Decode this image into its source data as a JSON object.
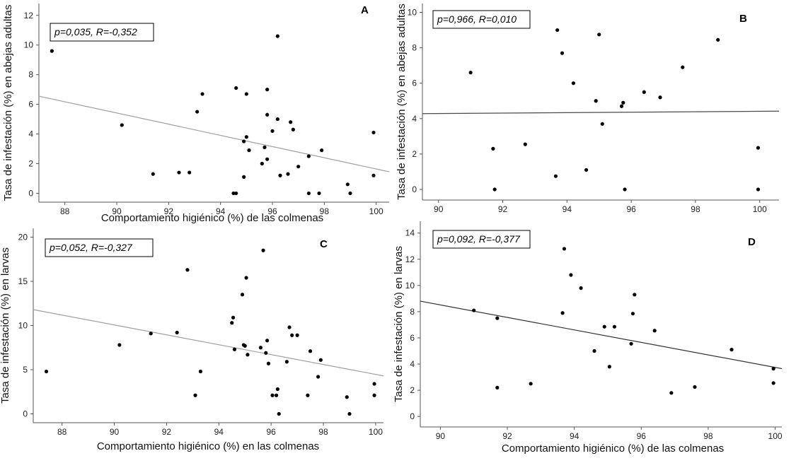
{
  "chart_data": [
    {
      "type": "scatter",
      "panel": "A",
      "xlabel": "Comportamiento higiénico (%) de las colmenas",
      "ylabel": "Tasa de infestación (%) en abejas adultas",
      "annotation": "p=0,035, R=-0,352",
      "xlim": [
        87,
        100.5
      ],
      "ylim": [
        -0.6,
        12.8
      ],
      "xticks": [
        88,
        90,
        92,
        94,
        96,
        98,
        100
      ],
      "yticks": [
        0,
        2,
        4,
        6,
        8,
        10,
        12
      ],
      "fit_line": {
        "x1": 87,
        "y1": 6.55,
        "x2": 100.5,
        "y2": 1.45
      },
      "points": [
        {
          "x": 87.5,
          "y": 9.6
        },
        {
          "x": 90.2,
          "y": 4.6
        },
        {
          "x": 91.4,
          "y": 1.3
        },
        {
          "x": 92.4,
          "y": 1.4
        },
        {
          "x": 92.8,
          "y": 1.4
        },
        {
          "x": 93.1,
          "y": 5.5
        },
        {
          "x": 93.3,
          "y": 6.7
        },
        {
          "x": 94.5,
          "y": 0
        },
        {
          "x": 94.6,
          "y": 0
        },
        {
          "x": 94.6,
          "y": 7.1
        },
        {
          "x": 94.9,
          "y": 1.1
        },
        {
          "x": 94.9,
          "y": 3.5
        },
        {
          "x": 95.0,
          "y": 3.8
        },
        {
          "x": 95.0,
          "y": 6.7
        },
        {
          "x": 95.1,
          "y": 2.9
        },
        {
          "x": 95.6,
          "y": 2.0
        },
        {
          "x": 95.7,
          "y": 3.1
        },
        {
          "x": 95.8,
          "y": 2.3
        },
        {
          "x": 95.8,
          "y": 5.3
        },
        {
          "x": 95.8,
          "y": 7.0
        },
        {
          "x": 96.0,
          "y": 4.2
        },
        {
          "x": 96.2,
          "y": 10.6
        },
        {
          "x": 96.2,
          "y": 5.0
        },
        {
          "x": 96.3,
          "y": 1.2
        },
        {
          "x": 96.6,
          "y": 1.3
        },
        {
          "x": 96.7,
          "y": 4.8
        },
        {
          "x": 96.8,
          "y": 4.3
        },
        {
          "x": 97.0,
          "y": 1.8
        },
        {
          "x": 97.4,
          "y": 0
        },
        {
          "x": 97.4,
          "y": 2.5
        },
        {
          "x": 97.8,
          "y": 0
        },
        {
          "x": 97.9,
          "y": 2.9
        },
        {
          "x": 98.9,
          "y": 0.6
        },
        {
          "x": 99.0,
          "y": 0
        },
        {
          "x": 99.9,
          "y": 4.1
        },
        {
          "x": 99.9,
          "y": 1.2
        }
      ]
    },
    {
      "type": "scatter",
      "panel": "B",
      "xlabel": "",
      "ylabel": "Tasa de infestación (%) en abejas adultas",
      "annotation": "p=0,966, R=0,010",
      "xlim": [
        89.5,
        100.6
      ],
      "ylim": [
        -0.6,
        10.5
      ],
      "xticks": [
        90,
        92,
        94,
        96,
        98,
        100
      ],
      "yticks": [
        0,
        2,
        4,
        6,
        8,
        10
      ],
      "fit_line": {
        "x1": 89.5,
        "y1": 4.28,
        "x2": 100.6,
        "y2": 4.42
      },
      "points": [
        {
          "x": 91.0,
          "y": 6.6
        },
        {
          "x": 91.7,
          "y": 2.3
        },
        {
          "x": 91.75,
          "y": 0
        },
        {
          "x": 92.7,
          "y": 2.55
        },
        {
          "x": 93.65,
          "y": 0.75
        },
        {
          "x": 93.7,
          "y": 9.0
        },
        {
          "x": 93.85,
          "y": 7.7
        },
        {
          "x": 94.2,
          "y": 6.0
        },
        {
          "x": 94.6,
          "y": 1.1
        },
        {
          "x": 94.9,
          "y": 5.0
        },
        {
          "x": 95.0,
          "y": 8.75
        },
        {
          "x": 95.1,
          "y": 3.7
        },
        {
          "x": 95.7,
          "y": 4.7
        },
        {
          "x": 95.75,
          "y": 4.9
        },
        {
          "x": 95.8,
          "y": 0
        },
        {
          "x": 96.4,
          "y": 5.5
        },
        {
          "x": 96.9,
          "y": 5.2
        },
        {
          "x": 97.6,
          "y": 6.9
        },
        {
          "x": 98.7,
          "y": 8.45
        },
        {
          "x": 99.95,
          "y": 2.35
        },
        {
          "x": 99.95,
          "y": 0
        }
      ]
    },
    {
      "type": "scatter",
      "panel": "C",
      "xlabel": "Comportamiento higiénico (%) en las colmenas",
      "ylabel": "Tasa de infestación (%) en larvas",
      "annotation": "p=0,052, R=-0,327",
      "xlim": [
        86.9,
        100.3
      ],
      "ylim": [
        -1,
        21
      ],
      "xticks": [
        88,
        90,
        92,
        94,
        96,
        98,
        100
      ],
      "yticks": [
        0,
        5,
        10,
        15,
        20
      ],
      "fit_line": {
        "x1": 86.9,
        "y1": 11.8,
        "x2": 100.3,
        "y2": 4.3
      },
      "points": [
        {
          "x": 87.4,
          "y": 4.8
        },
        {
          "x": 90.2,
          "y": 7.8
        },
        {
          "x": 91.4,
          "y": 9.1
        },
        {
          "x": 92.4,
          "y": 9.2
        },
        {
          "x": 92.8,
          "y": 16.3
        },
        {
          "x": 93.1,
          "y": 2.1
        },
        {
          "x": 93.3,
          "y": 4.8
        },
        {
          "x": 94.5,
          "y": 10.3
        },
        {
          "x": 94.55,
          "y": 10.9
        },
        {
          "x": 94.6,
          "y": 7.3
        },
        {
          "x": 94.9,
          "y": 13.5
        },
        {
          "x": 94.95,
          "y": 7.8
        },
        {
          "x": 95.0,
          "y": 7.7
        },
        {
          "x": 95.05,
          "y": 15.4
        },
        {
          "x": 95.1,
          "y": 6.7
        },
        {
          "x": 95.6,
          "y": 7.5
        },
        {
          "x": 95.7,
          "y": 18.5
        },
        {
          "x": 95.8,
          "y": 6.9
        },
        {
          "x": 95.85,
          "y": 8.3
        },
        {
          "x": 95.9,
          "y": 5.7
        },
        {
          "x": 96.05,
          "y": 2.1
        },
        {
          "x": 96.2,
          "y": 2.1
        },
        {
          "x": 96.25,
          "y": 2.8
        },
        {
          "x": 96.3,
          "y": 0
        },
        {
          "x": 96.6,
          "y": 5.9
        },
        {
          "x": 96.7,
          "y": 9.8
        },
        {
          "x": 96.8,
          "y": 8.9
        },
        {
          "x": 97.0,
          "y": 8.9
        },
        {
          "x": 97.4,
          "y": 2.1
        },
        {
          "x": 97.5,
          "y": 7.1
        },
        {
          "x": 97.8,
          "y": 4.2
        },
        {
          "x": 97.9,
          "y": 6.1
        },
        {
          "x": 98.9,
          "y": 1.9
        },
        {
          "x": 99.0,
          "y": 0
        },
        {
          "x": 99.95,
          "y": 3.4
        },
        {
          "x": 99.95,
          "y": 2.1
        }
      ]
    },
    {
      "type": "scatter",
      "panel": "D",
      "xlabel": "Comportamiento higiénico (%) de las colmenas",
      "ylabel": "Tasa de infestación (%) en larvas",
      "annotation": "p=0,092, R=-0,377",
      "xlim": [
        89.4,
        100.2
      ],
      "ylim": [
        -0.8,
        14.9
      ],
      "xticks": [
        90,
        92,
        94,
        96,
        98,
        100
      ],
      "yticks": [
        0,
        2,
        4,
        6,
        8,
        10,
        12,
        14
      ],
      "fit_line": {
        "x1": 89.4,
        "y1": 8.8,
        "x2": 100.2,
        "y2": 3.65
      },
      "points": [
        {
          "x": 91.0,
          "y": 8.1
        },
        {
          "x": 91.7,
          "y": 7.5
        },
        {
          "x": 91.7,
          "y": 2.2
        },
        {
          "x": 92.7,
          "y": 2.5
        },
        {
          "x": 93.65,
          "y": 7.9
        },
        {
          "x": 93.7,
          "y": 12.8
        },
        {
          "x": 93.9,
          "y": 10.8
        },
        {
          "x": 94.2,
          "y": 9.8
        },
        {
          "x": 94.6,
          "y": 5.0
        },
        {
          "x": 94.9,
          "y": 6.85
        },
        {
          "x": 95.05,
          "y": 3.8
        },
        {
          "x": 95.2,
          "y": 6.85
        },
        {
          "x": 95.7,
          "y": 5.55
        },
        {
          "x": 95.75,
          "y": 7.85
        },
        {
          "x": 95.8,
          "y": 9.3
        },
        {
          "x": 96.4,
          "y": 6.55
        },
        {
          "x": 96.9,
          "y": 1.8
        },
        {
          "x": 97.6,
          "y": 2.25
        },
        {
          "x": 98.7,
          "y": 5.1
        },
        {
          "x": 99.95,
          "y": 3.65
        },
        {
          "x": 99.95,
          "y": 2.55
        }
      ]
    }
  ]
}
